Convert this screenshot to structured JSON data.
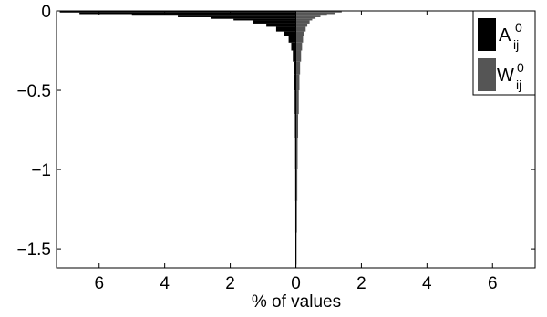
{
  "chart_data": {
    "type": "bar",
    "orientation": "horizontal-back-to-back",
    "title": "",
    "xlabel": "% of values",
    "ylabel": "",
    "xlim": [
      -7.3,
      7.3
    ],
    "ylim": [
      -1.62,
      0
    ],
    "x_ticks": [
      -6,
      -4,
      -2,
      0,
      2,
      4,
      6
    ],
    "x_tick_labels": [
      "6",
      "4",
      "2",
      "0",
      "2",
      "4",
      "6"
    ],
    "y_ticks": [
      0,
      -0.5,
      -1,
      -1.5
    ],
    "y_tick_labels": [
      "0",
      "−0.5",
      "−1",
      "−1.5"
    ],
    "grid": false,
    "legend_position": "top-right",
    "series": [
      {
        "name_main": "A",
        "name_sub": "ij",
        "name_sup": "0",
        "side": "left",
        "color": "#000000",
        "bins": [
          0,
          -0.01,
          -0.02,
          -0.03,
          -0.04,
          -0.05,
          -0.06,
          -0.08,
          -0.1,
          -0.13,
          -0.16,
          -0.2,
          -0.25,
          -0.32,
          -0.4,
          -0.5,
          -0.65,
          -0.8,
          -1.0,
          -1.2,
          -1.4,
          -1.6
        ],
        "values": [
          7.2,
          6.6,
          5.0,
          3.6,
          2.6,
          1.9,
          1.3,
          0.9,
          0.6,
          0.35,
          0.22,
          0.14,
          0.09,
          0.06,
          0.045,
          0.035,
          0.028,
          0.022,
          0.018,
          0.015,
          0.012,
          0.01
        ]
      },
      {
        "name_main": "W",
        "name_sub": "ij",
        "name_sup": "0",
        "side": "right",
        "color": "#555555",
        "bins": [
          0,
          -0.01,
          -0.02,
          -0.03,
          -0.04,
          -0.05,
          -0.06,
          -0.08,
          -0.1,
          -0.13,
          -0.16,
          -0.2,
          -0.25,
          -0.32,
          -0.4,
          -0.5,
          -0.65,
          -0.8,
          -1.0,
          -1.2,
          -1.4,
          -1.6
        ],
        "values": [
          1.4,
          1.2,
          0.95,
          0.75,
          0.6,
          0.5,
          0.42,
          0.35,
          0.3,
          0.26,
          0.22,
          0.19,
          0.16,
          0.13,
          0.11,
          0.09,
          0.07,
          0.055,
          0.045,
          0.035,
          0.025,
          0.02
        ]
      }
    ]
  }
}
